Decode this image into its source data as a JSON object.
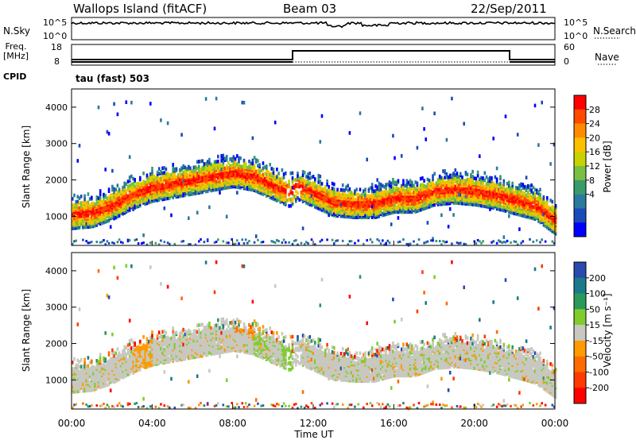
{
  "header": {
    "title": "Wallops Island (fitACF)",
    "beam": "Beam 03",
    "date": "22/Sep/2011"
  },
  "nsky_panel": {
    "left_label": "N.Sky",
    "right_label": "N.Search",
    "left_ticks": [
      "10^5",
      "10^0"
    ],
    "right_ticks": [
      "10^5",
      "10^0"
    ]
  },
  "freq_panel": {
    "left_label_line1": "Freq.",
    "left_label_line2": "[MHz]",
    "right_label": "Nave",
    "left_ticks": [
      "18",
      "8"
    ],
    "right_ticks": [
      "60",
      "0"
    ],
    "cpid_label": "CPID",
    "cpid_text": "tau (fast) 503"
  },
  "chart_data": [
    {
      "type": "heatmap",
      "panel": "power",
      "ylabel": "Slant Range [km]",
      "xlabel": "",
      "ylim": [
        200,
        4500
      ],
      "yticks": [
        "1000",
        "2000",
        "3000",
        "4000"
      ],
      "colorbar": {
        "label": "Power [dB]",
        "ticks": [
          "28",
          "24",
          "20",
          "16",
          "12",
          "8",
          "4"
        ],
        "colors": [
          "#ff0000",
          "#ff4a00",
          "#ff8c00",
          "#ffc000",
          "#c8d200",
          "#78c040",
          "#3a9a6a",
          "#2a7aa0",
          "#1a4ab8",
          "#0000ff"
        ]
      },
      "band_center_km": [
        [
          0,
          1100
        ],
        [
          1,
          1150
        ],
        [
          2,
          1350
        ],
        [
          3,
          1650
        ],
        [
          4,
          1850
        ],
        [
          5,
          1950
        ],
        [
          6,
          2050
        ],
        [
          7,
          2150
        ],
        [
          8,
          2250
        ],
        [
          9,
          2150
        ],
        [
          10,
          1900
        ],
        [
          10.8,
          1700
        ],
        [
          11.2,
          1900
        ],
        [
          12,
          1700
        ],
        [
          13,
          1450
        ],
        [
          14,
          1400
        ],
        [
          15,
          1400
        ],
        [
          16,
          1550
        ],
        [
          17,
          1550
        ],
        [
          18,
          1750
        ],
        [
          19,
          1800
        ],
        [
          20,
          1750
        ],
        [
          21,
          1650
        ],
        [
          22,
          1500
        ],
        [
          23,
          1350
        ],
        [
          24,
          950
        ]
      ]
    },
    {
      "type": "heatmap",
      "panel": "velocity",
      "ylabel": "Slant Range [km]",
      "xlabel": "Time UT",
      "ylim": [
        200,
        4500
      ],
      "yticks": [
        "1000",
        "2000",
        "3000",
        "4000"
      ],
      "x_ticks": [
        "00:00",
        "04:00",
        "08:00",
        "12:00",
        "16:00",
        "20:00",
        "00:00"
      ],
      "colorbar": {
        "label": "Velocity [m s⁻¹]",
        "ticks": [
          "200",
          "100",
          "50",
          "15",
          "-15",
          "-50",
          "-100",
          "-200"
        ],
        "colors": [
          "#2a4ab0",
          "#1a7a8a",
          "#2a9a5a",
          "#80cc30",
          "#c8c8c0",
          "#ff9a00",
          "#ff6a00",
          "#ff3a00",
          "#ff0000"
        ]
      }
    }
  ]
}
